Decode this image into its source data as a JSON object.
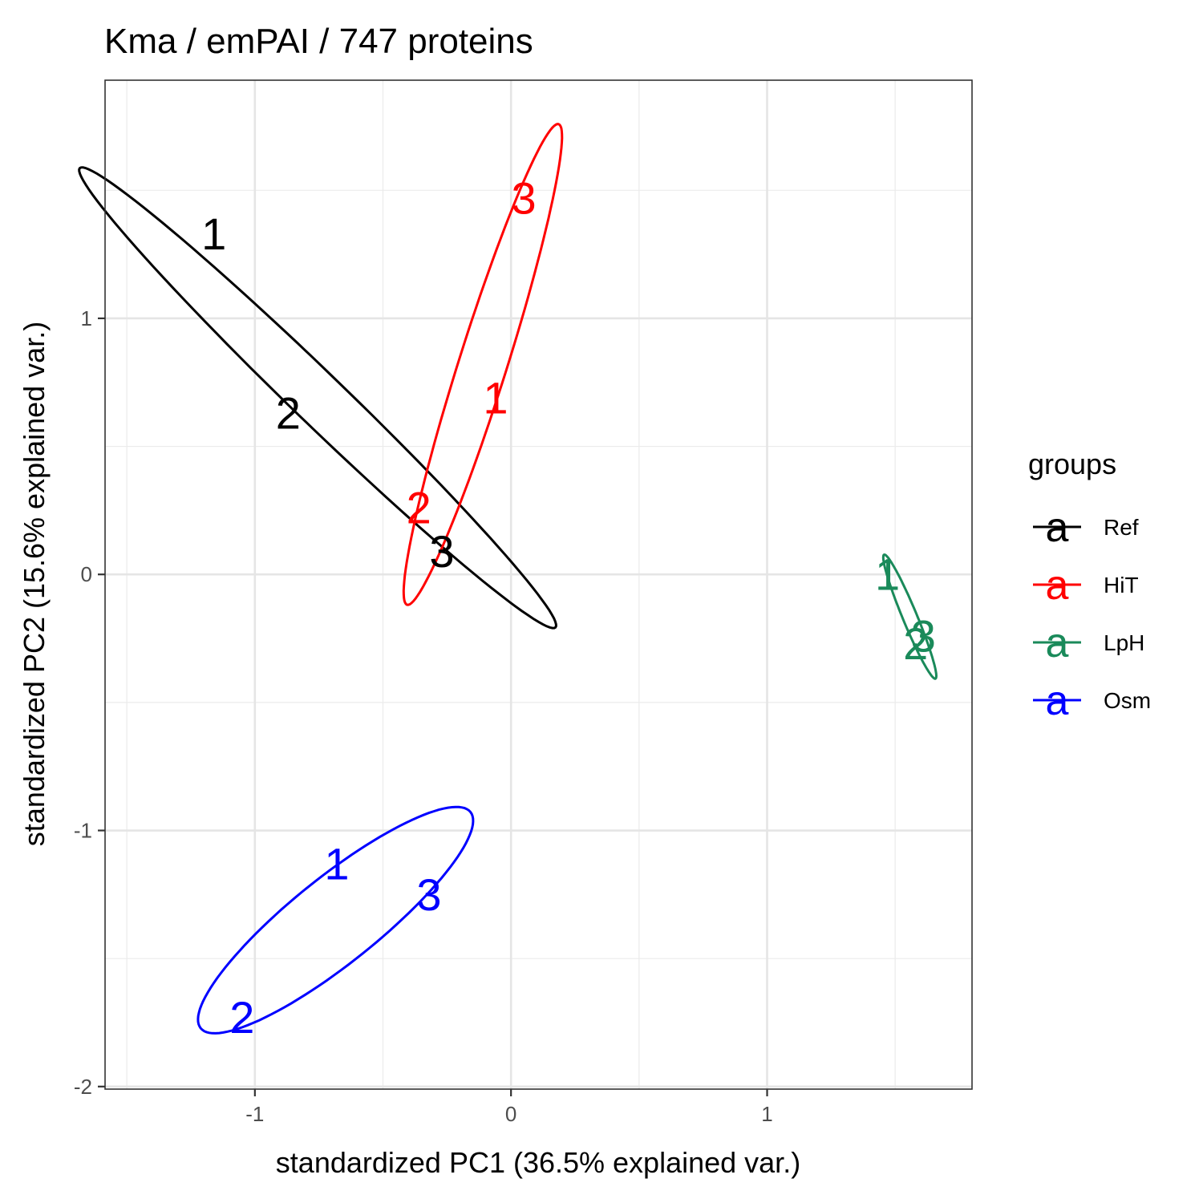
{
  "chart_data": {
    "type": "scatter",
    "title": "Kma / emPAI / 747  proteins",
    "xlabel": "standardized PC1 (36.5% explained var.)",
    "ylabel": "standardized PC2 (15.6% explained var.)",
    "xlim": [
      -1.585,
      1.8
    ],
    "ylim": [
      -2.01,
      1.93
    ],
    "x_ticks": [
      -1,
      0,
      1
    ],
    "x_tick_labels": [
      "-1",
      "0",
      "1"
    ],
    "y_ticks": [
      -2,
      -1,
      0,
      1
    ],
    "y_tick_labels": [
      "-2",
      "-1",
      "0",
      "1"
    ],
    "grid": true,
    "legend": {
      "title": "groups",
      "position": "right",
      "key_glyph": "a"
    },
    "series": [
      {
        "name": "Ref",
        "color": "#000000",
        "points": [
          {
            "label": "1",
            "x": -1.16,
            "y": 1.33
          },
          {
            "label": "2",
            "x": -0.87,
            "y": 0.63
          },
          {
            "label": "3",
            "x": -0.27,
            "y": 0.09
          }
        ],
        "ellipse": {
          "cx": -0.755,
          "cy": 0.69,
          "a": 1.291,
          "b": 0.1,
          "angle_deg": -44.0
        }
      },
      {
        "name": "HiT",
        "color": "#ff0000",
        "points": [
          {
            "label": "1",
            "x": -0.06,
            "y": 0.69
          },
          {
            "label": "2",
            "x": -0.36,
            "y": 0.26
          },
          {
            "label": "3",
            "x": 0.05,
            "y": 1.47
          }
        ],
        "ellipse": {
          "cx": -0.11,
          "cy": 0.82,
          "a": 0.984,
          "b": 0.094,
          "angle_deg": 72.5
        }
      },
      {
        "name": "LpH",
        "color": "#1a8a5a",
        "points": [
          {
            "label": "1",
            "x": 1.47,
            "y": 0.0
          },
          {
            "label": "2",
            "x": 1.58,
            "y": -0.27
          },
          {
            "label": "3",
            "x": 1.61,
            "y": -0.24
          }
        ],
        "ellipse": {
          "cx": 1.557,
          "cy": -0.165,
          "a": 0.262,
          "b": 0.028,
          "angle_deg": -67.5
        }
      },
      {
        "name": "Osm",
        "color": "#0000ff",
        "points": [
          {
            "label": "1",
            "x": -0.68,
            "y": -1.13
          },
          {
            "label": "2",
            "x": -1.05,
            "y": -1.73
          },
          {
            "label": "3",
            "x": -0.32,
            "y": -1.25
          }
        ],
        "ellipse": {
          "cx": -0.685,
          "cy": -1.35,
          "a": 0.675,
          "b": 0.168,
          "angle_deg": 38.7
        }
      }
    ]
  }
}
